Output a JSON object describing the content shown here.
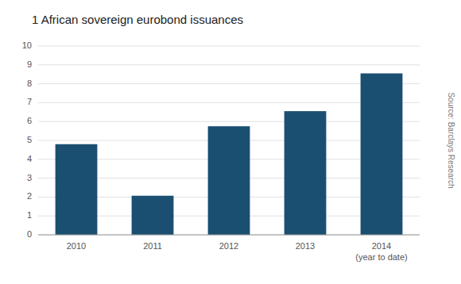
{
  "chart_data": {
    "type": "bar",
    "title": "1 African sovereign eurobond issuances",
    "categories": [
      "2010",
      "2011",
      "2012",
      "2013",
      "2014\n(year to date)"
    ],
    "values": [
      4.8,
      2.07,
      5.75,
      6.55,
      8.55
    ],
    "color": "#1b4f72",
    "ylim": [
      0,
      10
    ],
    "yticks": [
      0,
      1,
      2,
      3,
      4,
      5,
      6,
      7,
      8,
      9,
      10
    ],
    "grid": true,
    "source": "Source: Barclays Research"
  }
}
